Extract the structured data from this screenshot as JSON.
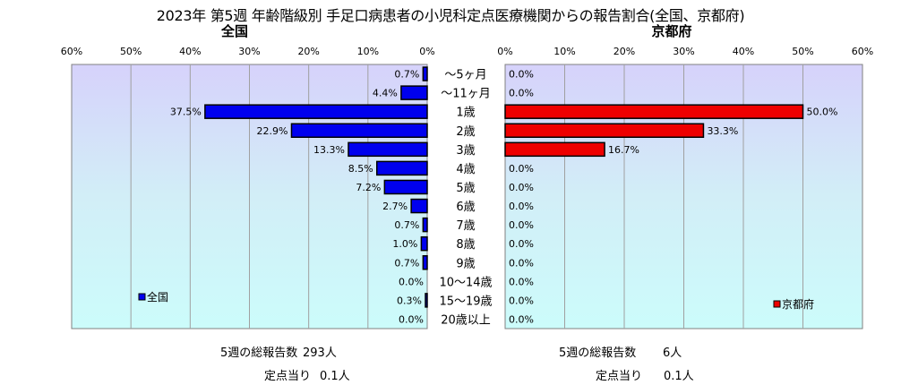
{
  "title": "2023年 第5週  年齢階級別 手足口病患者の小児科定点医療機関からの報告割合(全国、京都府)",
  "chart_data": [
    {
      "type": "bar",
      "title": "全国",
      "orientation": "horizontal",
      "direction": "right-to-left",
      "categories": [
        "～5ヶ月",
        "～11ヶ月",
        "1歳",
        "2歳",
        "3歳",
        "4歳",
        "5歳",
        "6歳",
        "7歳",
        "8歳",
        "9歳",
        "10～14歳",
        "15～19歳",
        "20歳以上"
      ],
      "series": [
        {
          "name": "全国",
          "color": "#0000ee",
          "values": [
            0.7,
            4.4,
            37.5,
            22.9,
            13.3,
            8.5,
            7.2,
            2.7,
            0.7,
            1.0,
            0.7,
            0.0,
            0.3,
            0.0
          ],
          "labels": [
            "0.7%",
            "4.4%",
            "37.5%",
            "22.9%",
            "13.3%",
            "8.5%",
            "7.2%",
            "2.7%",
            "0.7%",
            "1.0%",
            "0.7%",
            "0.0%",
            "0.3%",
            "0.0%"
          ]
        }
      ],
      "xlim": [
        0,
        60
      ],
      "xticks": [
        "0%",
        "10%",
        "20%",
        "30%",
        "40%",
        "50%",
        "60%"
      ],
      "legend": "bottom-left",
      "grid": true,
      "footer": {
        "total_label": "5週の総報告数",
        "total_value": "293人",
        "per_site_label": "定点当り",
        "per_site_value": "0.1人"
      }
    },
    {
      "type": "bar",
      "title": "京都府",
      "orientation": "horizontal",
      "direction": "left-to-right",
      "categories": [
        "～5ヶ月",
        "～11ヶ月",
        "1歳",
        "2歳",
        "3歳",
        "4歳",
        "5歳",
        "6歳",
        "7歳",
        "8歳",
        "9歳",
        "10～14歳",
        "15～19歳",
        "20歳以上"
      ],
      "series": [
        {
          "name": "京都府",
          "color": "#ee0000",
          "values": [
            0.0,
            0.0,
            50.0,
            33.3,
            16.7,
            0.0,
            0.0,
            0.0,
            0.0,
            0.0,
            0.0,
            0.0,
            0.0,
            0.0
          ],
          "labels": [
            "0.0%",
            "0.0%",
            "50.0%",
            "33.3%",
            "16.7%",
            "0.0%",
            "0.0%",
            "0.0%",
            "0.0%",
            "0.0%",
            "0.0%",
            "0.0%",
            "0.0%",
            "0.0%"
          ]
        }
      ],
      "xlim": [
        0,
        60
      ],
      "xticks": [
        "0%",
        "10%",
        "20%",
        "30%",
        "40%",
        "50%",
        "60%"
      ],
      "legend": "bottom-right",
      "grid": true,
      "footer": {
        "total_label": "5週の総報告数",
        "total_value": "6人",
        "per_site_label": "定点当り",
        "per_site_value": "0.1人"
      }
    }
  ]
}
